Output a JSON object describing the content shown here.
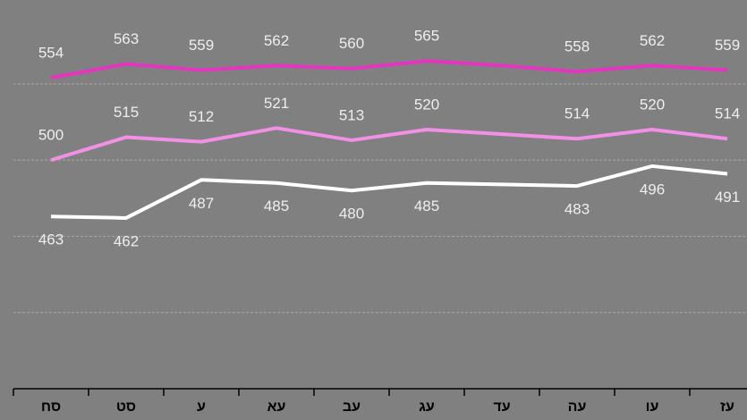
{
  "chart_data": {
    "type": "line",
    "categories": [
      "סח",
      "סט",
      "ע",
      "עא",
      "עב",
      "עג",
      "עד",
      "עה",
      "עו",
      "עז"
    ],
    "series": [
      {
        "color": "#e535c0",
        "values": [
          554,
          563,
          559,
          562,
          560,
          565,
          562,
          558,
          562,
          559
        ],
        "value_labels": [
          554,
          563,
          559,
          562,
          560,
          565,
          null,
          558,
          562,
          559
        ],
        "label_position": "above"
      },
      {
        "color": "#f290e6",
        "values": [
          500,
          515,
          512,
          521,
          513,
          520,
          517,
          514,
          520,
          514
        ],
        "value_labels": [
          500,
          515,
          512,
          521,
          513,
          520,
          null,
          514,
          520,
          514
        ],
        "label_position": "above"
      },
      {
        "color": "#ffffff",
        "values": [
          463,
          462,
          487,
          485,
          480,
          485,
          484,
          483,
          496,
          491
        ],
        "value_labels": [
          463,
          462,
          487,
          485,
          480,
          485,
          null,
          483,
          496,
          491
        ],
        "label_position": "below"
      }
    ],
    "ylim": [
      350,
      605
    ],
    "yticks": [
      400,
      450,
      500,
      550
    ],
    "grid": true
  }
}
